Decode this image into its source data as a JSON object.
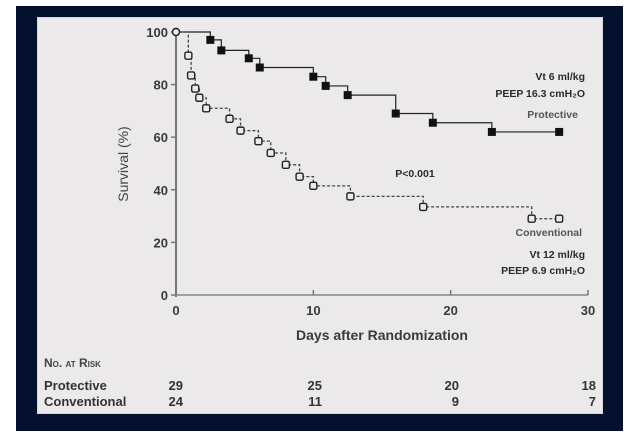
{
  "chart_data": {
    "type": "line",
    "subtype": "kaplan-meier",
    "title": "",
    "xlabel": "Days after Randomization",
    "ylabel": "Survival (%)",
    "xlim": [
      0,
      30
    ],
    "ylim": [
      0,
      100
    ],
    "x_ticks": [
      0,
      10,
      20,
      30
    ],
    "y_ticks": [
      0,
      20,
      40,
      60,
      80,
      100
    ],
    "grid": false,
    "series": [
      {
        "name": "Protective",
        "style": "solid",
        "marker": "filled-square",
        "color": "#111111",
        "points": [
          {
            "x": 0,
            "y": 100
          },
          {
            "x": 2.5,
            "y": 97
          },
          {
            "x": 3.3,
            "y": 93
          },
          {
            "x": 5.3,
            "y": 90
          },
          {
            "x": 6.1,
            "y": 86.5
          },
          {
            "x": 10.0,
            "y": 83
          },
          {
            "x": 10.9,
            "y": 79.5
          },
          {
            "x": 12.5,
            "y": 76
          },
          {
            "x": 16.0,
            "y": 69
          },
          {
            "x": 18.7,
            "y": 65.5
          },
          {
            "x": 23.0,
            "y": 62
          },
          {
            "x": 27.9,
            "y": 62
          }
        ]
      },
      {
        "name": "Conventional",
        "style": "dashed",
        "marker": "open-square",
        "color": "#111111",
        "points": [
          {
            "x": 0,
            "y": 100
          },
          {
            "x": 0.9,
            "y": 91
          },
          {
            "x": 1.1,
            "y": 83.5
          },
          {
            "x": 1.4,
            "y": 78.5
          },
          {
            "x": 1.7,
            "y": 75
          },
          {
            "x": 2.2,
            "y": 71
          },
          {
            "x": 3.9,
            "y": 67
          },
          {
            "x": 4.7,
            "y": 62.5
          },
          {
            "x": 6.0,
            "y": 58.5
          },
          {
            "x": 6.9,
            "y": 54
          },
          {
            "x": 8.0,
            "y": 49.5
          },
          {
            "x": 9.0,
            "y": 45
          },
          {
            "x": 10.0,
            "y": 41.5
          },
          {
            "x": 12.7,
            "y": 37.5
          },
          {
            "x": 18.0,
            "y": 33.5
          },
          {
            "x": 25.9,
            "y": 29
          },
          {
            "x": 27.9,
            "y": 29
          }
        ]
      }
    ],
    "annotations": {
      "pvalue": "P<0.001",
      "protective_line1": "Vt 6 ml/kg",
      "protective_line2": "PEEP 16.3 cmH₂O",
      "protective_label": "Protective",
      "conventional_label": "Conventional",
      "conventional_line1": "Vt 12 ml/kg",
      "conventional_line2": "PEEP 6.9 cmH₂O"
    },
    "legend": "inline-labels"
  },
  "risk_table": {
    "header": "No. at Risk",
    "rows": [
      {
        "label": "Protective",
        "values": [
          "29",
          "25",
          "20",
          "18"
        ]
      },
      {
        "label": "Conventional",
        "values": [
          "24",
          "11",
          "9",
          "7"
        ]
      }
    ]
  },
  "colors": {
    "frame": "#05102e",
    "panel": "#ebe9ea",
    "ink": "#1a1a1a"
  }
}
